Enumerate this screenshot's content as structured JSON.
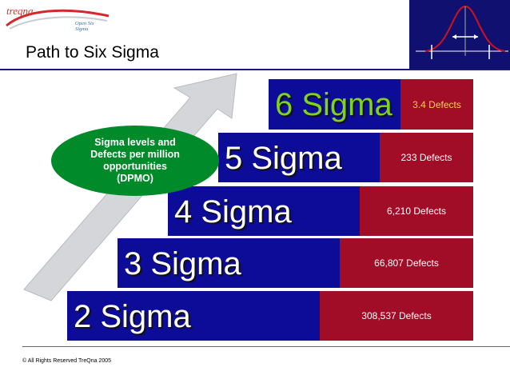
{
  "logo": {
    "name": "treqna",
    "tagline": "Open Six Sigma"
  },
  "title": "Path to Six Sigma",
  "callout": [
    "Sigma levels and",
    "Defects per million",
    "opportunities",
    "(DPMO)"
  ],
  "steps": [
    {
      "label": "2 Sigma",
      "defects": "308,537 Defects"
    },
    {
      "label": "3 Sigma",
      "defects": "66,807 Defects"
    },
    {
      "label": "4 Sigma",
      "defects": "6,210 Defects"
    },
    {
      "label": "5 Sigma",
      "defects": "233 Defects"
    },
    {
      "label": "6 Sigma",
      "defects": "3.4 Defects"
    }
  ],
  "copyright": "© All Rights Reserved TreQna 2005",
  "colors": {
    "blue": "#0c0c98",
    "red": "#a10c26",
    "green": "#008a2a",
    "six_sigma_text": "#7ed321"
  }
}
